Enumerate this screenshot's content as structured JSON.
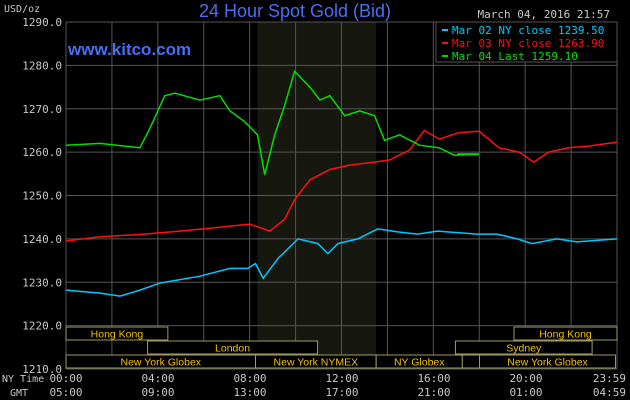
{
  "chart_data": {
    "type": "line",
    "title": "24 Hour Spot Gold (Bid)",
    "watermark": "www.kitco.com",
    "timestamp": "March 04, 2016 21:57",
    "ylabel": "USD/oz",
    "ylim": [
      1210,
      1290
    ],
    "yticks": [
      "1210.0",
      "1220.0",
      "1230.0",
      "1240.0",
      "1250.0",
      "1260.0",
      "1270.0",
      "1280.0",
      "1290.0"
    ],
    "grid": true,
    "legend_placement": "top-right",
    "x_axis_rows": [
      {
        "label": "NY Time",
        "ticks": [
          "00:00",
          "04:00",
          "08:00",
          "12:00",
          "16:00",
          "20:00",
          "23:59"
        ]
      },
      {
        "label": "GMT",
        "ticks": [
          "05:00",
          "09:00",
          "13:00",
          "17:00",
          "21:00",
          "01:00",
          "04:59"
        ]
      }
    ],
    "highlight_range": [
      "08:20",
      "13:30"
    ],
    "colors": {
      "title": "#4a6ef0",
      "grid": "#555555",
      "axis_text": "#c8c8c8",
      "session_text": "#f0c000",
      "session_border": "#a09a60",
      "highlight": "#16180f"
    },
    "series": [
      {
        "name": "Mar 02 NY close 1239.50",
        "color": "#00c8ff",
        "x": [
          "00:00",
          "01:29",
          "02:21",
          "03:13",
          "04:05",
          "05:50",
          "07:08",
          "07:55",
          "08:15",
          "08:35",
          "09:14",
          "10:06",
          "10:58",
          "11:24",
          "11:50",
          "12:42",
          "13:34",
          "14:26",
          "15:18",
          "16:10",
          "17:54",
          "18:46",
          "19:38",
          "20:17",
          "21:22",
          "22:14",
          "23:59"
        ],
        "y": [
          1228.2,
          1227.5,
          1226.8,
          1228.2,
          1229.8,
          1231.4,
          1233.2,
          1233.2,
          1234.3,
          1230.9,
          1235.5,
          1240.0,
          1238.9,
          1236.6,
          1238.9,
          1240.0,
          1242.3,
          1241.6,
          1241.1,
          1241.8,
          1241.1,
          1241.1,
          1240.0,
          1238.9,
          1240.0,
          1239.3,
          1240.0
        ]
      },
      {
        "name": "Mar 03 NY close 1263.90",
        "color": "#ff1010",
        "x": [
          "00:00",
          "01:29",
          "03:13",
          "04:57",
          "06:42",
          "08:00",
          "08:52",
          "09:31",
          "09:57",
          "10:37",
          "11:29",
          "12:21",
          "13:26",
          "14:05",
          "14:57",
          "15:36",
          "16:15",
          "17:07",
          "17:59",
          "18:51",
          "19:43",
          "20:22",
          "21:01",
          "21:53",
          "22:45",
          "23:59"
        ],
        "y": [
          1239.5,
          1240.5,
          1241.0,
          1241.8,
          1242.7,
          1243.4,
          1241.8,
          1244.5,
          1249.0,
          1253.6,
          1256.0,
          1257.0,
          1257.7,
          1258.2,
          1260.5,
          1265.0,
          1263.0,
          1264.5,
          1264.8,
          1261.0,
          1260.0,
          1257.7,
          1260.0,
          1261.0,
          1261.4,
          1262.3
        ]
      },
      {
        "name": "Mar 04 Last 1259.10",
        "color": "#00e000",
        "x": [
          "00:00",
          "01:29",
          "03:13",
          "03:39",
          "04:18",
          "04:44",
          "05:50",
          "06:42",
          "07:08",
          "07:47",
          "08:20",
          "08:39",
          "09:05",
          "09:31",
          "09:57",
          "10:37",
          "11:03",
          "11:29",
          "12:08",
          "12:47",
          "13:26",
          "13:52",
          "14:31",
          "15:23",
          "16:15",
          "16:54",
          "17:59"
        ],
        "y": [
          1261.6,
          1262.0,
          1261.0,
          1265.5,
          1273.0,
          1273.6,
          1272.0,
          1273.0,
          1269.5,
          1267.0,
          1264.0,
          1254.8,
          1264.0,
          1270.7,
          1278.6,
          1275.0,
          1272.0,
          1273.0,
          1268.4,
          1269.5,
          1268.4,
          1262.7,
          1264.0,
          1261.6,
          1261.0,
          1259.3,
          1259.5
        ]
      }
    ],
    "sessions": [
      {
        "label": "Hong Kong",
        "row": 1,
        "start": "00:00",
        "end": "04:26"
      },
      {
        "label": "Hong Kong",
        "row": 1,
        "start": "19:30",
        "end": "23:59"
      },
      {
        "label": "London",
        "row": 2,
        "start": "03:33",
        "end": "10:57"
      },
      {
        "label": "Sydney",
        "row": 2,
        "start": "16:57",
        "end": "22:54"
      },
      {
        "label": "New York Globex",
        "row": 3,
        "start": "00:00",
        "end": "08:15"
      },
      {
        "label": "New York NYMEX",
        "row": 3,
        "start": "08:15",
        "end": "13:30"
      },
      {
        "label": "NY Globex",
        "row": 3,
        "start": "13:30",
        "end": "17:15"
      },
      {
        "label": "",
        "row": 3,
        "start": "17:15",
        "end": "18:00"
      },
      {
        "label": "New York Globex",
        "row": 3,
        "start": "18:00",
        "end": "23:55"
      }
    ]
  }
}
